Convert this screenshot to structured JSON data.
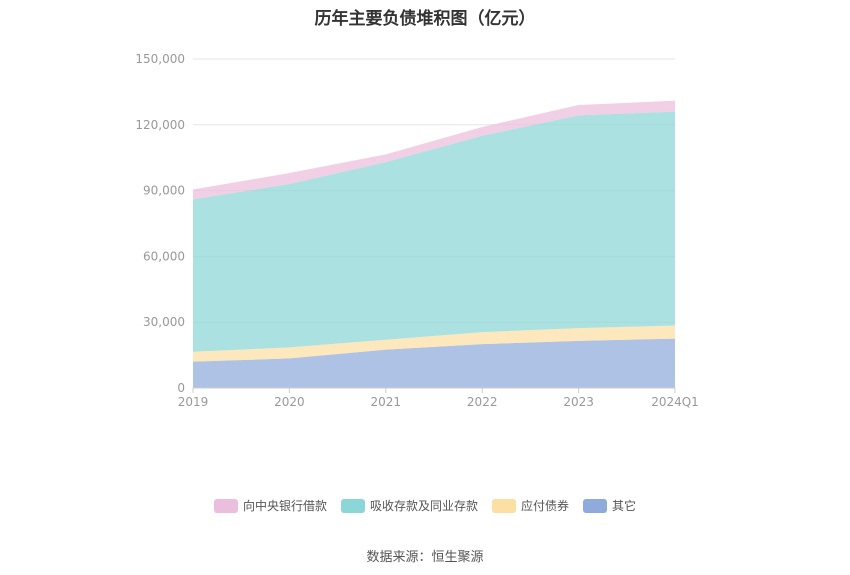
{
  "chart_data": {
    "type": "area",
    "stacked": true,
    "title": "历年主要负债堆积图（亿元）",
    "x": [
      "2019",
      "2020",
      "2021",
      "2022",
      "2023",
      "2024Q1"
    ],
    "ylim": [
      0,
      150000
    ],
    "yticks": [
      "0",
      "30,000",
      "60,000",
      "90,000",
      "120,000",
      "150,000"
    ],
    "ytick_values": [
      0,
      30000,
      60000,
      90000,
      120000,
      150000
    ],
    "series": [
      {
        "name": "其它",
        "color": "#8fabdc",
        "values": [
          12000,
          13500,
          17500,
          20000,
          21500,
          22500
        ]
      },
      {
        "name": "应付债券",
        "color": "#fcdfa3",
        "values": [
          4500,
          5000,
          4500,
          5500,
          5800,
          6000
        ]
      },
      {
        "name": "吸收存款及同业存款",
        "color": "#8bd6d6",
        "values": [
          69500,
          74500,
          81000,
          89500,
          97000,
          97500
        ]
      },
      {
        "name": "向中央银行借款",
        "color": "#ebbedd",
        "values": [
          4500,
          5000,
          3500,
          4000,
          4700,
          5000
        ]
      }
    ],
    "legend_order": [
      "向中央银行借款",
      "吸收存款及同业存款",
      "应付债券",
      "其它"
    ],
    "legend_position": "bottom",
    "grid": true
  },
  "source_text": "数据来源：恒生聚源"
}
